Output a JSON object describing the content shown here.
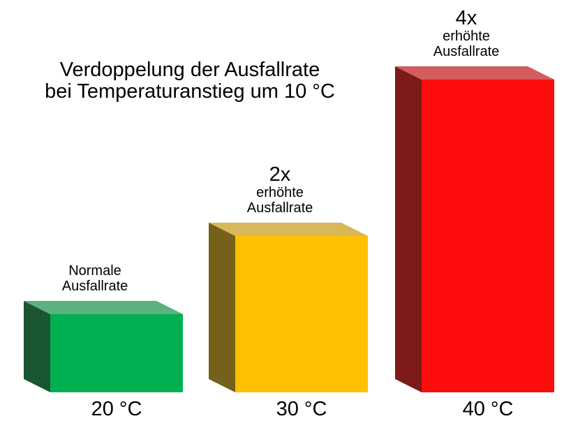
{
  "title": {
    "line1": "Verdoppelung der Ausfallrate",
    "line2": "bei Temperaturanstieg um 10 °C"
  },
  "chart_data": {
    "type": "bar",
    "style": "3d-boxes",
    "title": "Verdoppelung der Ausfallrate bei Temperaturanstieg um 10 °C",
    "categories": [
      "20 °C",
      "30 °C",
      "40 °C"
    ],
    "values": [
      1,
      2,
      4
    ],
    "bar_annotations": [
      {
        "headline": "",
        "line1": "Normale",
        "line2": "Ausfallrate"
      },
      {
        "headline": "2x",
        "line1": "erhöhte",
        "line2": "Ausfallrate"
      },
      {
        "headline": "4x",
        "line1": "erhöhte",
        "line2": "Ausfallrate"
      }
    ],
    "colors": [
      {
        "front": "#00B050",
        "top": "#5CB27E",
        "side": "#1A5631"
      },
      {
        "front": "#FFC000",
        "top": "#D8B858",
        "side": "#75611A"
      },
      {
        "front": "#FF0D0D",
        "top": "#D45C5C",
        "side": "#7C1B17"
      }
    ],
    "xlabel": "",
    "ylabel": "",
    "grid": false,
    "legend": false,
    "background": "#FFFFFF"
  }
}
